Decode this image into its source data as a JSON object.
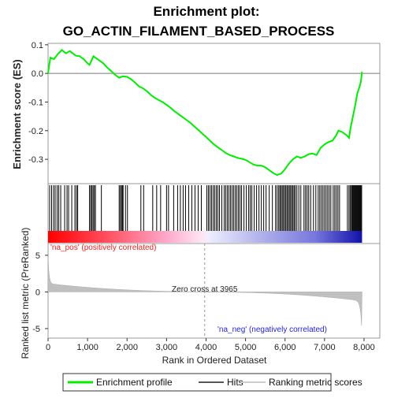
{
  "chart_data": {
    "type": "line",
    "title_line1": "Enrichment plot:",
    "title_line2": "GO_ACTIN_FILAMENT_BASED_PROCESS",
    "ylabel_es": "Enrichment score (ES)",
    "ylabel_metric": "Ranked list metric (PreRanked)",
    "xlabel": "Rank in Ordered Dataset",
    "xlim": [
      0,
      8400
    ],
    "es_ylim": [
      -0.385,
      0.105
    ],
    "metric_ylim": [
      -6.3,
      6.6
    ],
    "x_ticks": [
      0,
      1000,
      2000,
      3000,
      4000,
      5000,
      6000,
      7000,
      8000
    ],
    "x_tick_labels": [
      "0",
      "1,000",
      "2,000",
      "3,000",
      "4,000",
      "5,000",
      "6,000",
      "7,000",
      "8,000"
    ],
    "es_ticks": [
      0.1,
      0.0,
      -0.1,
      -0.2,
      -0.3
    ],
    "es_tick_labels": [
      "0.1",
      "0.0",
      "-0.1",
      "-0.2",
      "-0.3"
    ],
    "metric_ticks": [
      5,
      0,
      -5
    ],
    "metric_tick_labels": [
      "5",
      "0",
      "-5"
    ],
    "n_genes": 7950,
    "zero_cross": 3965,
    "zero_cross_label": "Zero cross at 3965",
    "pos_label": "'na_pos' (positively correlated)",
    "neg_label": "'na_neg' (negatively correlated)",
    "es_curve": [
      [
        0,
        0.0
      ],
      [
        30,
        0.03
      ],
      [
        60,
        0.055
      ],
      [
        150,
        0.05
      ],
      [
        250,
        0.068
      ],
      [
        350,
        0.082
      ],
      [
        450,
        0.07
      ],
      [
        550,
        0.078
      ],
      [
        700,
        0.062
      ],
      [
        800,
        0.06
      ],
      [
        900,
        0.05
      ],
      [
        1000,
        0.035
      ],
      [
        1050,
        0.03
      ],
      [
        1100,
        0.045
      ],
      [
        1150,
        0.06
      ],
      [
        1200,
        0.055
      ],
      [
        1300,
        0.045
      ],
      [
        1400,
        0.035
      ],
      [
        1500,
        0.02
      ],
      [
        1600,
        0.008
      ],
      [
        1700,
        -0.005
      ],
      [
        1800,
        -0.015
      ],
      [
        1900,
        -0.01
      ],
      [
        2000,
        -0.012
      ],
      [
        2100,
        -0.02
      ],
      [
        2200,
        -0.032
      ],
      [
        2300,
        -0.045
      ],
      [
        2400,
        -0.052
      ],
      [
        2500,
        -0.062
      ],
      [
        2600,
        -0.075
      ],
      [
        2700,
        -0.085
      ],
      [
        2800,
        -0.093
      ],
      [
        2900,
        -0.1
      ],
      [
        3000,
        -0.11
      ],
      [
        3100,
        -0.12
      ],
      [
        3200,
        -0.132
      ],
      [
        3300,
        -0.142
      ],
      [
        3400,
        -0.152
      ],
      [
        3500,
        -0.162
      ],
      [
        3600,
        -0.172
      ],
      [
        3700,
        -0.185
      ],
      [
        3800,
        -0.197
      ],
      [
        3900,
        -0.21
      ],
      [
        4000,
        -0.222
      ],
      [
        4100,
        -0.235
      ],
      [
        4200,
        -0.248
      ],
      [
        4300,
        -0.258
      ],
      [
        4400,
        -0.268
      ],
      [
        4500,
        -0.278
      ],
      [
        4600,
        -0.285
      ],
      [
        4700,
        -0.29
      ],
      [
        4800,
        -0.295
      ],
      [
        4900,
        -0.298
      ],
      [
        5000,
        -0.302
      ],
      [
        5100,
        -0.31
      ],
      [
        5200,
        -0.318
      ],
      [
        5300,
        -0.322
      ],
      [
        5400,
        -0.322
      ],
      [
        5500,
        -0.328
      ],
      [
        5600,
        -0.338
      ],
      [
        5700,
        -0.348
      ],
      [
        5800,
        -0.355
      ],
      [
        5900,
        -0.35
      ],
      [
        6000,
        -0.335
      ],
      [
        6100,
        -0.315
      ],
      [
        6200,
        -0.3
      ],
      [
        6300,
        -0.29
      ],
      [
        6400,
        -0.295
      ],
      [
        6500,
        -0.29
      ],
      [
        6600,
        -0.282
      ],
      [
        6700,
        -0.28
      ],
      [
        6800,
        -0.285
      ],
      [
        6900,
        -0.26
      ],
      [
        7000,
        -0.248
      ],
      [
        7100,
        -0.24
      ],
      [
        7200,
        -0.235
      ],
      [
        7300,
        -0.215
      ],
      [
        7350,
        -0.2
      ],
      [
        7450,
        -0.205
      ],
      [
        7550,
        -0.215
      ],
      [
        7620,
        -0.225
      ],
      [
        7660,
        -0.19
      ],
      [
        7720,
        -0.15
      ],
      [
        7780,
        -0.11
      ],
      [
        7830,
        -0.07
      ],
      [
        7880,
        -0.05
      ],
      [
        7920,
        -0.03
      ],
      [
        7950,
        0.005
      ]
    ],
    "hits": [
      40,
      90,
      140,
      180,
      230,
      270,
      320,
      420,
      480,
      520,
      600,
      680,
      720,
      750,
      1050,
      1080,
      1110,
      1140,
      1170,
      1200,
      1350,
      1800,
      1830,
      1860,
      1880,
      1900,
      1960,
      2010,
      2350,
      2420,
      2650,
      2750,
      2850,
      3000,
      3050,
      3180,
      3280,
      3350,
      3420,
      3480,
      3560,
      3640,
      3720,
      3800,
      3880,
      4020,
      4060,
      4100,
      4140,
      4180,
      4220,
      4260,
      4300,
      4340,
      4400,
      4460,
      4500,
      4540,
      4580,
      4620,
      4660,
      4700,
      4740,
      4780,
      4820,
      4860,
      4900,
      4960,
      5020,
      5080,
      5120,
      5160,
      5220,
      5280,
      5340,
      5400,
      5460,
      5520,
      5600,
      5680,
      5760,
      5800,
      5840,
      5870,
      5900,
      5930,
      5960,
      5990,
      6020,
      6050,
      6080,
      6110,
      6140,
      6170,
      6200,
      6230,
      6260,
      6300,
      6350,
      6400,
      6480,
      6520,
      6560,
      6600,
      6650,
      6720,
      6780,
      6840,
      6880,
      6920,
      6960,
      7000,
      7040,
      7080,
      7120,
      7160,
      7220,
      7260,
      7300,
      7340,
      7380,
      7580,
      7620,
      7650,
      7680,
      7700,
      7720,
      7740,
      7760,
      7780,
      7800,
      7820,
      7840,
      7860,
      7880,
      7900,
      7920,
      7940
    ],
    "legend": [
      {
        "label": "Enrichment profile",
        "color": "#00ee00"
      },
      {
        "label": "Hits",
        "color": "#555555"
      },
      {
        "label": "Ranking metric scores",
        "color": "#cccccc"
      }
    ],
    "colors": {
      "profile": "#00ee00",
      "hits": "#000000",
      "metric": "#c0c0c0",
      "pos_text": "#ee2222",
      "neg_text": "#2222dd"
    }
  }
}
